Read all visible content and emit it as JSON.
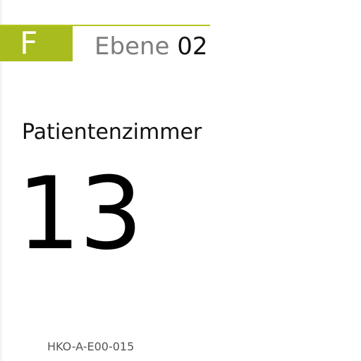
{
  "sign": {
    "floor_letter": "F",
    "level_word": "Ebene",
    "level_number": "02",
    "room_type": "Patientenzimmer",
    "room_number": "13",
    "code": "HKO-A-E00-015"
  },
  "colors": {
    "accent_green": "#a8bc1f",
    "level_gray": "#7d7d7d",
    "text_black": "#000000"
  }
}
